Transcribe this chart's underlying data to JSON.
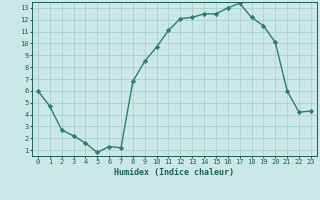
{
  "x": [
    0,
    1,
    2,
    3,
    4,
    5,
    6,
    7,
    8,
    9,
    10,
    11,
    12,
    13,
    14,
    15,
    16,
    17,
    18,
    19,
    20,
    21,
    22,
    23
  ],
  "y": [
    6.0,
    4.7,
    2.7,
    2.2,
    1.6,
    0.8,
    1.3,
    1.2,
    6.8,
    8.5,
    9.7,
    11.1,
    12.1,
    12.2,
    12.5,
    12.5,
    13.0,
    13.4,
    12.2,
    11.5,
    10.1,
    6.0,
    4.2,
    4.3
  ],
  "title": "",
  "xlabel": "Humidex (Indice chaleur)",
  "ylabel": "",
  "xlim": [
    -0.5,
    23.5
  ],
  "ylim": [
    0.5,
    13.5
  ],
  "yticks": [
    1,
    2,
    3,
    4,
    5,
    6,
    7,
    8,
    9,
    10,
    11,
    12,
    13
  ],
  "xticks": [
    0,
    1,
    2,
    3,
    4,
    5,
    6,
    7,
    8,
    9,
    10,
    11,
    12,
    13,
    14,
    15,
    16,
    17,
    18,
    19,
    20,
    21,
    22,
    23
  ],
  "line_color": "#2e7d6e",
  "bg_color": "#cce8e6",
  "grid_color": "#aacfcc",
  "text_color": "#1a5f5a",
  "marker": "D",
  "marker_size": 2.2,
  "line_width": 1.0,
  "xlabel_fontsize": 6.0,
  "tick_fontsize": 5.0
}
